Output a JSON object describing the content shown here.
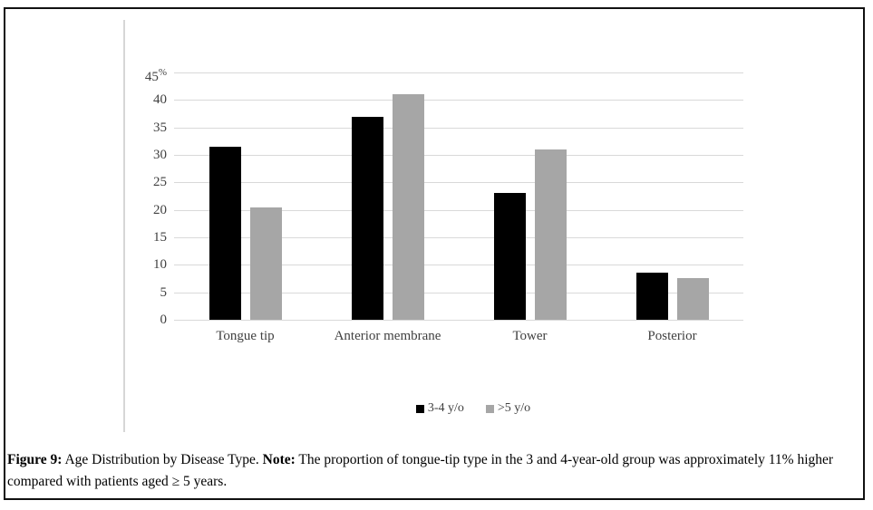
{
  "chart_data": {
    "type": "bar",
    "categories": [
      "Tongue tip",
      "Anterior membrane",
      "Tower",
      "Posterior"
    ],
    "series": [
      {
        "name": "3-4 y/o",
        "color": "#000000",
        "values": [
          31.5,
          37,
          23,
          8.5
        ]
      },
      {
        "name": ">5 y/o",
        "color": "#a6a6a6",
        "values": [
          20.4,
          41,
          31,
          7.6
        ]
      }
    ],
    "title": "",
    "xlabel": "",
    "ylabel": "%",
    "ylim": [
      0,
      45
    ],
    "yticks": [
      0,
      5,
      10,
      15,
      20,
      25,
      30,
      35,
      40,
      45
    ],
    "ytick_percent_suffix": "%",
    "grid": true,
    "gridline_color": "#d9d9d9",
    "axis_text_color": "#404040",
    "legend_position": "bottom-center"
  },
  "caption": {
    "figure_label": "Figure 9:",
    "figure_title": " Age Distribution by Disease Type. ",
    "note_label": "Note:",
    "note_text": " The proportion of tongue-tip type in the 3 and 4-year-old group was approximately 11% higher compared with patients aged ≥ 5 years."
  }
}
